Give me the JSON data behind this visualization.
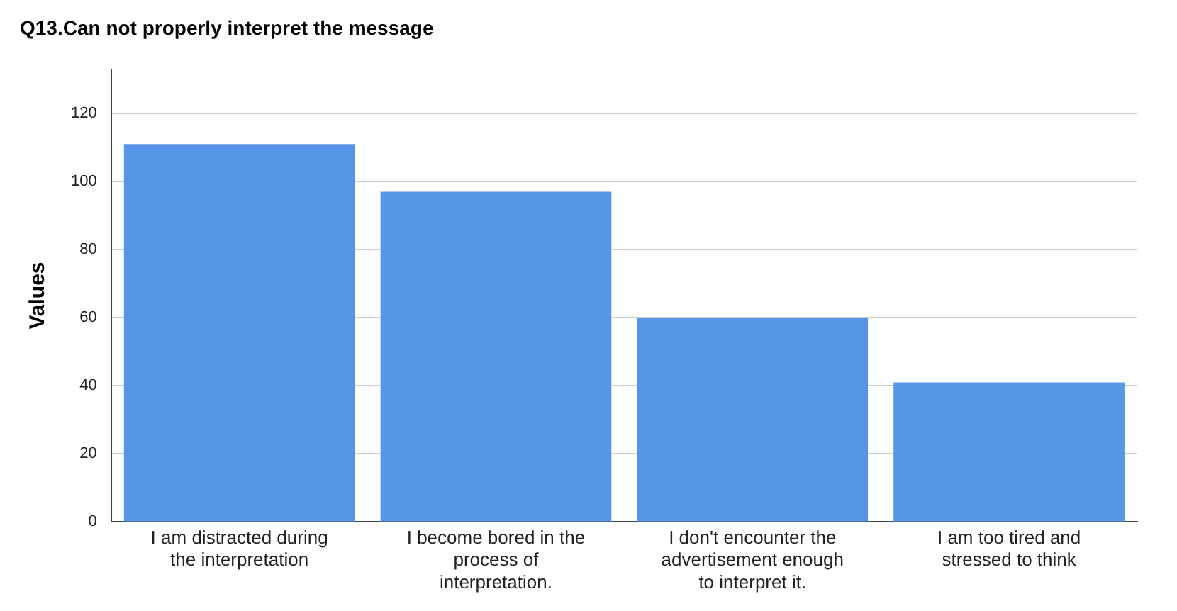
{
  "chart_data": {
    "type": "bar",
    "title": "Q13.Can not properly interpret the message",
    "ylabel": "Values",
    "categories": [
      "I am distracted during the interpretation",
      "I become bored in the process of interpretation.",
      "I don't encounter the advertisement enough to interpret it.",
      "I am too tired and stressed to think"
    ],
    "values": [
      111,
      97,
      60,
      41
    ],
    "color": "#5596e6",
    "ylim": [
      0,
      133
    ],
    "yticks": [
      0,
      20,
      40,
      60,
      80,
      100,
      120
    ],
    "grid": "y"
  }
}
